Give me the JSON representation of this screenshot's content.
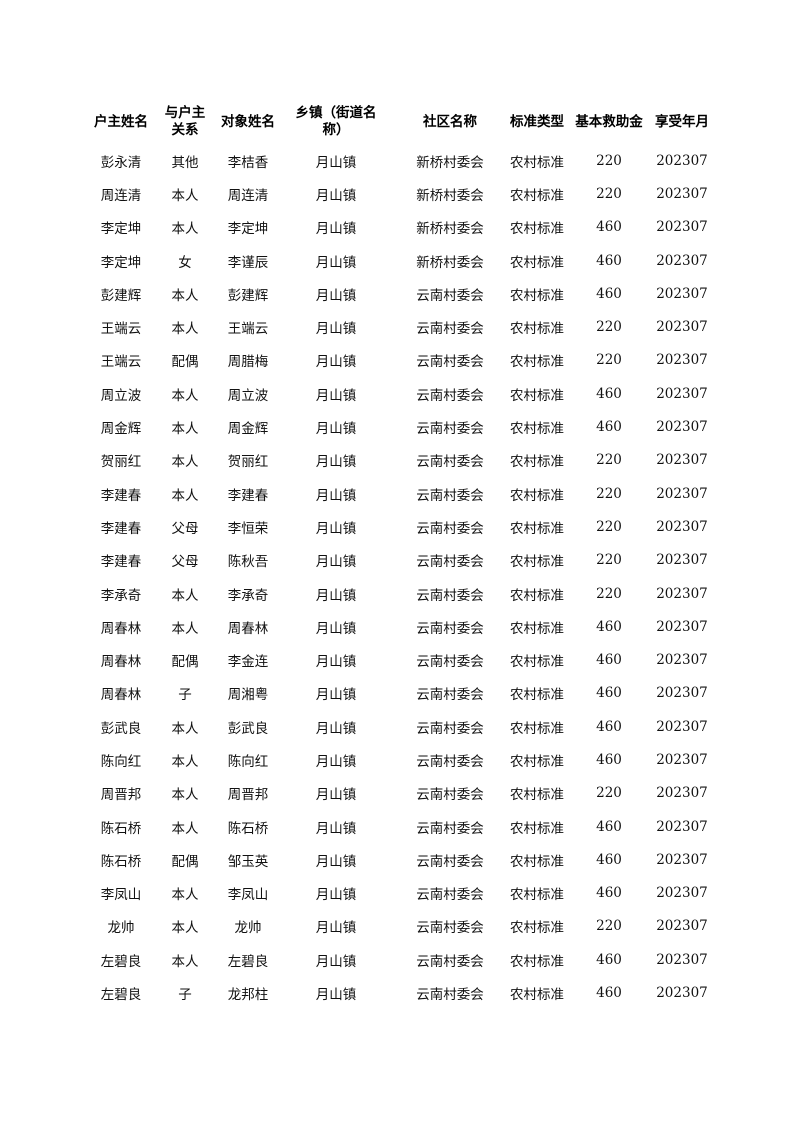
{
  "headers": [
    "户主姓名",
    "与户主关系",
    "对象姓名",
    "乡镇（街道名称）",
    "社区名称",
    "标准类型",
    "基本救助金",
    "享受年月"
  ],
  "header_lines": [
    [
      "户主姓名"
    ],
    [
      "与户主",
      "关系"
    ],
    [
      "对象姓名"
    ],
    [
      "乡镇（街道名",
      "称）"
    ],
    [
      "社区名称"
    ],
    [
      "标准类型"
    ],
    [
      "基本救助金"
    ],
    [
      "享受年月"
    ]
  ],
  "rows": [
    [
      "彭永清",
      "其他",
      "李桔香",
      "月山镇",
      "新桥村委会",
      "农村标准",
      "220",
      "202307"
    ],
    [
      "周连清",
      "本人",
      "周连清",
      "月山镇",
      "新桥村委会",
      "农村标准",
      "220",
      "202307"
    ],
    [
      "李定坤",
      "本人",
      "李定坤",
      "月山镇",
      "新桥村委会",
      "农村标准",
      "460",
      "202307"
    ],
    [
      "李定坤",
      "女",
      "李谨辰",
      "月山镇",
      "新桥村委会",
      "农村标准",
      "460",
      "202307"
    ],
    [
      "彭建辉",
      "本人",
      "彭建辉",
      "月山镇",
      "云南村委会",
      "农村标准",
      "460",
      "202307"
    ],
    [
      "王端云",
      "本人",
      "王端云",
      "月山镇",
      "云南村委会",
      "农村标准",
      "220",
      "202307"
    ],
    [
      "王端云",
      "配偶",
      "周腊梅",
      "月山镇",
      "云南村委会",
      "农村标准",
      "220",
      "202307"
    ],
    [
      "周立波",
      "本人",
      "周立波",
      "月山镇",
      "云南村委会",
      "农村标准",
      "460",
      "202307"
    ],
    [
      "周金辉",
      "本人",
      "周金辉",
      "月山镇",
      "云南村委会",
      "农村标准",
      "460",
      "202307"
    ],
    [
      "贺丽红",
      "本人",
      "贺丽红",
      "月山镇",
      "云南村委会",
      "农村标准",
      "220",
      "202307"
    ],
    [
      "李建春",
      "本人",
      "李建春",
      "月山镇",
      "云南村委会",
      "农村标准",
      "220",
      "202307"
    ],
    [
      "李建春",
      "父母",
      "李恒荣",
      "月山镇",
      "云南村委会",
      "农村标准",
      "220",
      "202307"
    ],
    [
      "李建春",
      "父母",
      "陈秋吾",
      "月山镇",
      "云南村委会",
      "农村标准",
      "220",
      "202307"
    ],
    [
      "李承奇",
      "本人",
      "李承奇",
      "月山镇",
      "云南村委会",
      "农村标准",
      "220",
      "202307"
    ],
    [
      "周春林",
      "本人",
      "周春林",
      "月山镇",
      "云南村委会",
      "农村标准",
      "460",
      "202307"
    ],
    [
      "周春林",
      "配偶",
      "李金连",
      "月山镇",
      "云南村委会",
      "农村标准",
      "460",
      "202307"
    ],
    [
      "周春林",
      "子",
      "周湘粤",
      "月山镇",
      "云南村委会",
      "农村标准",
      "460",
      "202307"
    ],
    [
      "彭武良",
      "本人",
      "彭武良",
      "月山镇",
      "云南村委会",
      "农村标准",
      "460",
      "202307"
    ],
    [
      "陈向红",
      "本人",
      "陈向红",
      "月山镇",
      "云南村委会",
      "农村标准",
      "460",
      "202307"
    ],
    [
      "周晋邦",
      "本人",
      "周晋邦",
      "月山镇",
      "云南村委会",
      "农村标准",
      "220",
      "202307"
    ],
    [
      "陈石桥",
      "本人",
      "陈石桥",
      "月山镇",
      "云南村委会",
      "农村标准",
      "460",
      "202307"
    ],
    [
      "陈石桥",
      "配偶",
      "邹玉英",
      "月山镇",
      "云南村委会",
      "农村标准",
      "460",
      "202307"
    ],
    [
      "李凤山",
      "本人",
      "李凤山",
      "月山镇",
      "云南村委会",
      "农村标准",
      "460",
      "202307"
    ],
    [
      "龙帅",
      "本人",
      "龙帅",
      "月山镇",
      "云南村委会",
      "农村标准",
      "220",
      "202307"
    ],
    [
      "左碧良",
      "本人",
      "左碧良",
      "月山镇",
      "云南村委会",
      "农村标准",
      "460",
      "202307"
    ],
    [
      "左碧良",
      "子",
      "龙邦柱",
      "月山镇",
      "云南村委会",
      "农村标准",
      "460",
      "202307"
    ]
  ]
}
